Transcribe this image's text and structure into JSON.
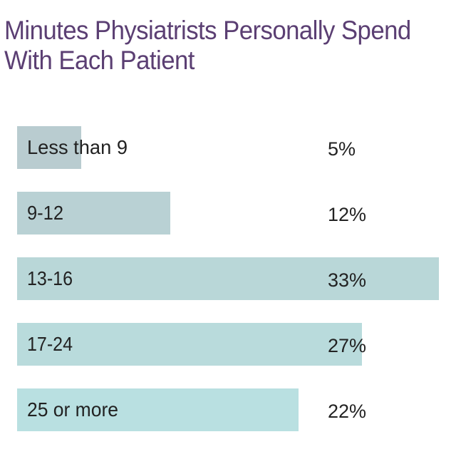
{
  "chart_data": {
    "type": "bar",
    "orientation": "horizontal",
    "title": [
      "Minutes Physiatrists Personally Spend",
      "With Each Patient"
    ],
    "categories": [
      "Less than 9",
      "9-12",
      "13-16",
      "17-24",
      "25 or more"
    ],
    "values": [
      5,
      12,
      33,
      27,
      22
    ],
    "value_labels": [
      "5%",
      "12%",
      "33%",
      "27%",
      "22%"
    ],
    "xlim": [
      0,
      33
    ],
    "grid": false,
    "legend": "none",
    "colors": [
      "#b9ccd0",
      "#b9d1d4",
      "#b9d7d8",
      "#b9dbdc",
      "#b9e0e1"
    ]
  }
}
